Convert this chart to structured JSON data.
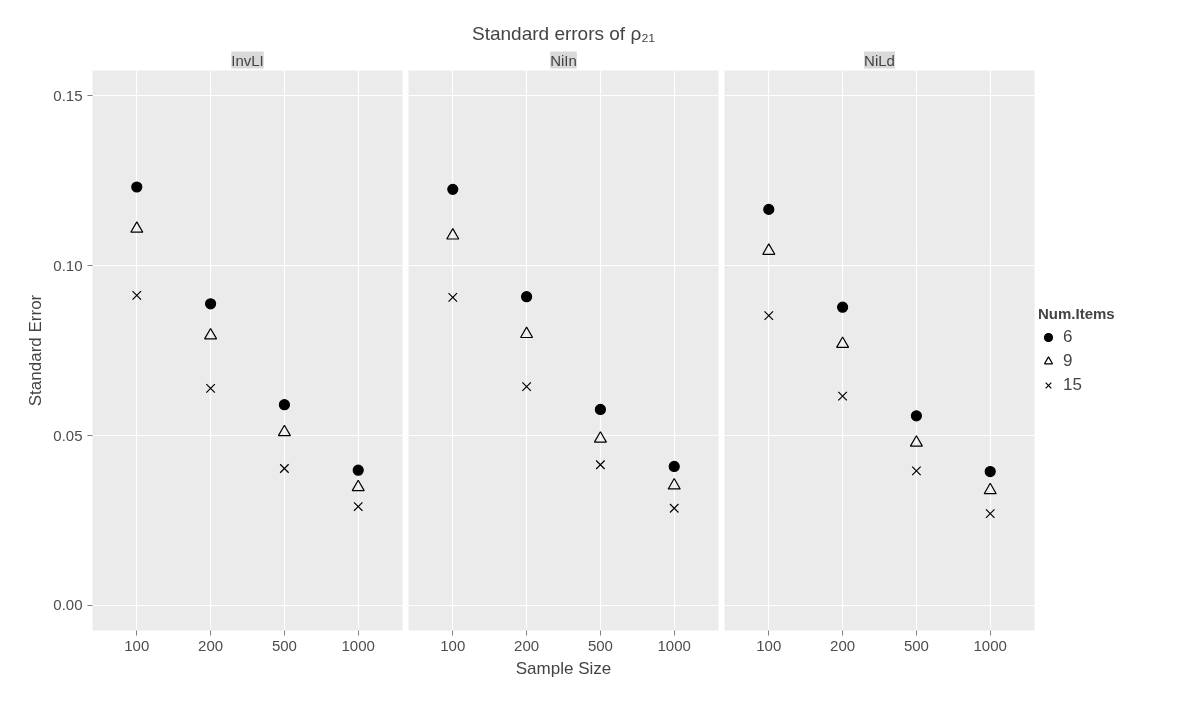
{
  "chart_data": [
    {
      "type": "scatter",
      "title": "InvLI",
      "ylabel": "Standard Error",
      "categories": [
        "100",
        "200",
        "500",
        "1000"
      ],
      "ylim": [
        -0.0074,
        0.1575
      ],
      "yticks": [
        {
          "value": 0,
          "label": "0.00"
        },
        0.05,
        {
          "value": 0.1,
          "label": "0.10"
        },
        0.15
      ],
      "grid": true,
      "series": [
        {
          "color": "#000000",
          "marker": "circle",
          "values": [
            0.1232,
            0.0888,
            0.0591,
            0.0398
          ]
        },
        {
          "color": "#000000",
          "marker": "triangle",
          "values": [
            0.1109,
            0.0795,
            0.051,
            0.0348
          ]
        },
        {
          "color": "#000000",
          "marker": "cross",
          "values": [
            0.0913,
            0.0639,
            0.0403,
            0.0291
          ]
        }
      ]
    },
    {
      "type": "scatter",
      "title": "Standard errors of ρ₂₁",
      "subtitle": "NiIn",
      "xlabel": "Sample Size",
      "categories": [
        "100",
        "200",
        "500",
        "1000"
      ],
      "ylim": [
        -0.0074,
        0.1575
      ],
      "yticks": [
        0,
        0.05,
        0.1,
        0.15
      ],
      "grid": true,
      "tick_labels": "x",
      "series": [
        {
          "color": "#000000",
          "marker": "circle",
          "values": [
            0.1225,
            0.0909,
            0.0577,
            0.0409
          ]
        },
        {
          "color": "#000000",
          "marker": "triangle",
          "values": [
            0.1089,
            0.0799,
            0.0491,
            0.0353
          ]
        },
        {
          "color": "#000000",
          "marker": "cross",
          "values": [
            0.0907,
            0.0644,
            0.0414,
            0.0286
          ]
        }
      ]
    },
    {
      "type": "scatter",
      "title": "NiLd",
      "categories": [
        "100",
        "200",
        "500",
        "1000"
      ],
      "ylim": [
        -0.0074,
        0.1575
      ],
      "yticks": [
        0,
        0.05,
        0.1,
        0.15
      ],
      "grid": true,
      "tick_labels": "x",
      "legend": "right",
      "legend_title": "Num.Items",
      "series": [
        {
          "name": "6",
          "color": "#000000",
          "marker": "circle",
          "values": [
            0.1166,
            0.0878,
            0.0558,
            0.0394
          ]
        },
        {
          "name": "9",
          "color": "#000000",
          "marker": "triangle",
          "values": [
            0.1044,
            0.077,
            0.0479,
            0.0339
          ]
        },
        {
          "name": "15",
          "color": "#000000",
          "marker": "cross",
          "values": [
            0.0853,
            0.0616,
            0.0396,
            0.027
          ]
        }
      ]
    }
  ]
}
